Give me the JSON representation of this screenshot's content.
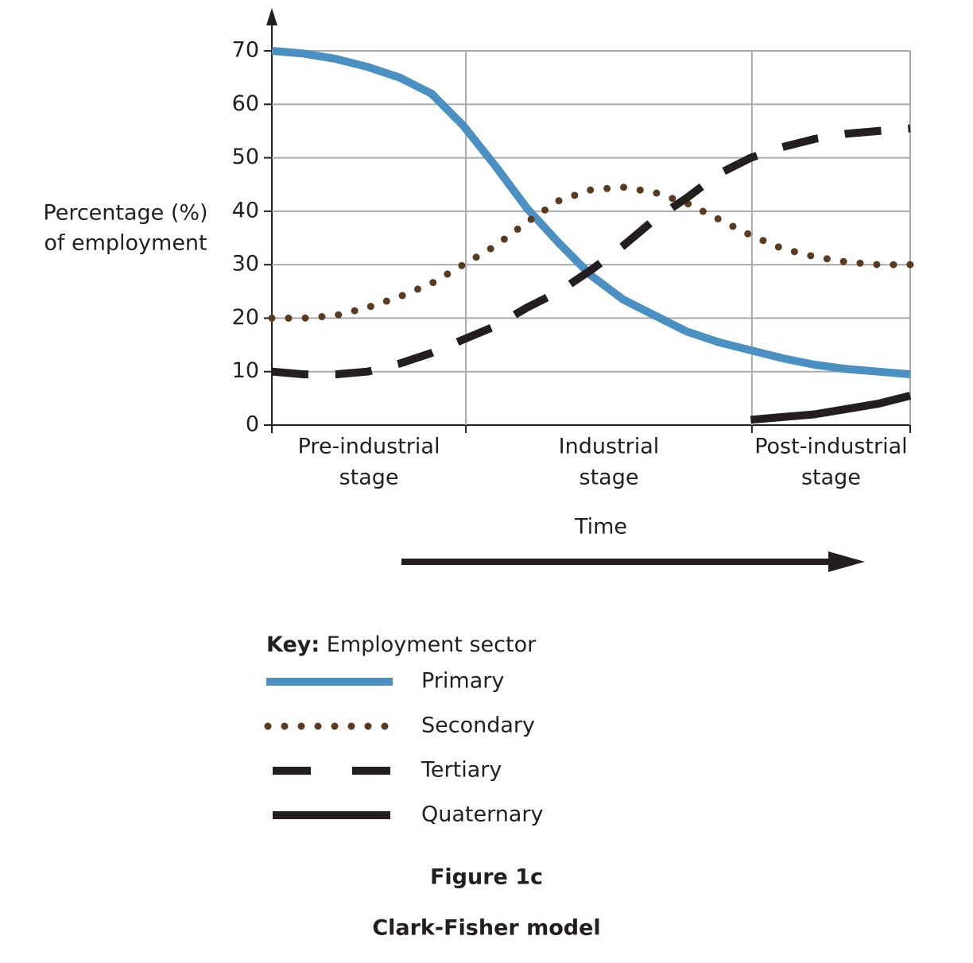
{
  "chart_data": {
    "type": "line",
    "title": "Figure 1c",
    "subtitle": "Clark-Fisher model",
    "y_label": [
      "Percentage (%)",
      "of employment"
    ],
    "x_label": "Time",
    "categories": [
      [
        "Pre-industrial",
        "stage"
      ],
      [
        "Industrial",
        "stage"
      ],
      [
        "Post-industrial",
        "stage"
      ]
    ],
    "xlim": [
      0,
      100
    ],
    "xgrid": [
      30.4,
      75.2
    ],
    "x": [
      0,
      5,
      10,
      15,
      20,
      25,
      30,
      35,
      40,
      45,
      50,
      55,
      60,
      65,
      70,
      75,
      80,
      85,
      90,
      95,
      100
    ],
    "ylim": [
      0,
      70
    ],
    "yticks": [
      0,
      10,
      20,
      30,
      40,
      50,
      60,
      70
    ],
    "grid": true,
    "legend_title": {
      "key": "Key:",
      "text": "Employment sector"
    },
    "series": [
      {
        "name": "Primary",
        "color": "#4a90c2",
        "style": "solid",
        "values": [
          70,
          69.5,
          68.5,
          67,
          65,
          62,
          56,
          48.5,
          40.5,
          34,
          28,
          23.5,
          20.5,
          17.5,
          15.5,
          14,
          12.5,
          11.3,
          10.5,
          10,
          9.5
        ]
      },
      {
        "name": "Secondary",
        "color": "#5c3a1e",
        "style": "dotted",
        "values": [
          20,
          20,
          20.5,
          22,
          24,
          26.5,
          30,
          33.5,
          38,
          42,
          44,
          44.5,
          43.5,
          41.5,
          38.5,
          35.5,
          33,
          31.5,
          30.5,
          30,
          30
        ]
      },
      {
        "name": "Tertiary",
        "color": "#231f20",
        "style": "dashed",
        "values": [
          10,
          9.5,
          9.5,
          10,
          11.5,
          13.5,
          16,
          18.5,
          22,
          25,
          29,
          33.5,
          38.5,
          42.5,
          47,
          50,
          52,
          53.5,
          54.5,
          55,
          55.5
        ]
      },
      {
        "name": "Quaternary",
        "color": "#231f20",
        "style": "solid",
        "values": [
          null,
          null,
          null,
          null,
          null,
          null,
          null,
          null,
          null,
          null,
          null,
          null,
          null,
          null,
          null,
          1,
          1.5,
          2,
          3,
          4,
          5.5
        ]
      }
    ]
  }
}
